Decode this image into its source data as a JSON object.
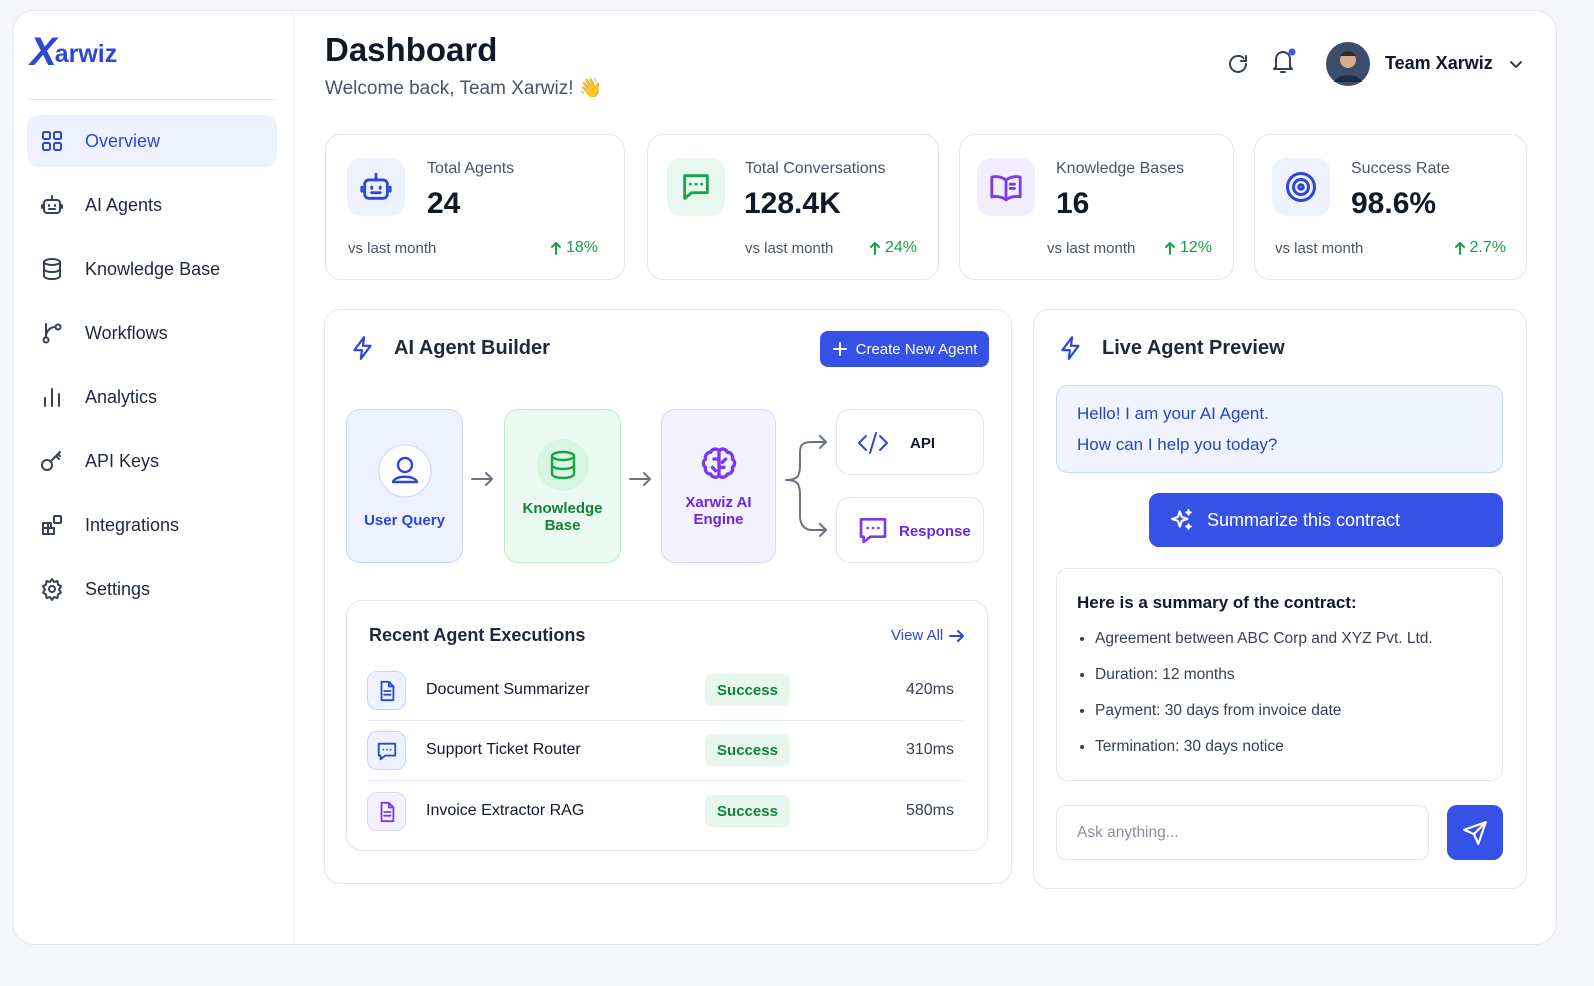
{
  "logo": {
    "mark": "X",
    "text": "arwiz"
  },
  "sidebar": {
    "nav": [
      "Overview",
      "AI Agents",
      "Knowledge Base",
      "Workflows",
      "Analytics",
      "API Keys",
      "Integrations",
      "Settings"
    ]
  },
  "header": {
    "title": "Dashboard",
    "subtitle": "Welcome back, Team Xarwiz! 👋",
    "user": "Team Xarwiz"
  },
  "stats": [
    {
      "label": "Total Agents",
      "value": "24",
      "compare": "vs last month",
      "change": "18%"
    },
    {
      "label": "Total Conversations",
      "value": "128.4K",
      "compare": "vs last month",
      "change": "24%"
    },
    {
      "label": "Knowledge Bases",
      "value": "16",
      "compare": "vs last month",
      "change": "12%"
    },
    {
      "label": "Success Rate",
      "value": "98.6%",
      "compare": "vs last month",
      "change": "2.7%"
    }
  ],
  "builder": {
    "title": "AI Agent Builder",
    "button": "Create New Agent",
    "flow": [
      "User Query",
      "Knowledge Base",
      "Xarwiz AI Engine"
    ],
    "outputs": [
      "API",
      "Response"
    ]
  },
  "executions": {
    "title": "Recent Agent Executions",
    "view_all": "View All",
    "rows": [
      {
        "name": "Document Summarizer",
        "status": "Success",
        "duration": "420ms"
      },
      {
        "name": "Support Ticket Router",
        "status": "Success",
        "duration": "310ms"
      },
      {
        "name": "Invoice Extractor RAG",
        "status": "Success",
        "duration": "580ms"
      }
    ]
  },
  "preview": {
    "title": "Live Agent Preview",
    "greeting": [
      "Hello! I am your AI Agent.",
      "How can I help you today?"
    ],
    "action": "Summarize this contract",
    "summary_title": "Here is a summary of the contract:",
    "summary_items": [
      "Agreement between ABC Corp and XYZ Pvt. Ltd.",
      "Duration: 12 months",
      "Payment: 30 days from invoice date",
      "Termination: 30 days notice"
    ],
    "input_placeholder": "Ask anything..."
  }
}
